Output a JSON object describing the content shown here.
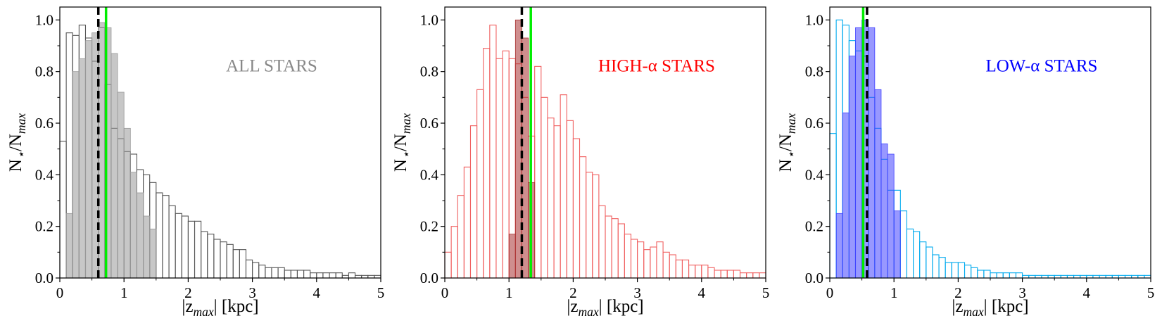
{
  "chart_data": [
    {
      "type": "histogram",
      "annotation": "ALL STARS",
      "annotation_color": "#888888",
      "xlabel": "|z_max| [kpc]",
      "ylabel": "N_⋆/N_max",
      "xlim": [
        0,
        5
      ],
      "ylim": [
        0,
        1.05
      ],
      "xticks": [
        "0",
        "1",
        "2",
        "3",
        "4",
        "5"
      ],
      "yticks": [
        "0.0",
        "0.2",
        "0.4",
        "0.6",
        "0.8",
        "1.0"
      ],
      "bin_width": 0.1,
      "series": [
        {
          "style": "step",
          "color": "#555555",
          "x_start": 0.0,
          "values": [
            0.53,
            0.95,
            0.94,
            0.98,
            0.93,
            0.84,
            0.97,
            0.75,
            0.58,
            0.54,
            0.49,
            0.48,
            0.42,
            0.4,
            0.37,
            0.33,
            0.32,
            0.28,
            0.25,
            0.24,
            0.22,
            0.22,
            0.18,
            0.17,
            0.15,
            0.14,
            0.13,
            0.11,
            0.11,
            0.07,
            0.06,
            0.05,
            0.04,
            0.04,
            0.04,
            0.03,
            0.03,
            0.03,
            0.03,
            0.02,
            0.02,
            0.02,
            0.02,
            0.02,
            0.01,
            0.02,
            0.01,
            0.01,
            0.01,
            0.01
          ]
        },
        {
          "style": "filled",
          "color": "#999999",
          "x_start": 0.1,
          "values": [
            0.25,
            0.8,
            0.85,
            0.92,
            0.95,
            0.99,
            0.97,
            0.87,
            0.72,
            0.58,
            0.41,
            0.33,
            0.24,
            0.19
          ]
        }
      ],
      "vlines": [
        {
          "x": 0.6,
          "style": "dashed",
          "color": "#000000"
        },
        {
          "x": 0.72,
          "style": "solid",
          "color": "#00ee00"
        }
      ]
    },
    {
      "type": "histogram",
      "annotation": "HIGH-α STARS",
      "annotation_color": "#ff0000",
      "xlabel": "|z_max| [kpc]",
      "ylabel": "N_⋆/N_max",
      "xlim": [
        0,
        5
      ],
      "ylim": [
        0,
        1.05
      ],
      "xticks": [
        "0",
        "1",
        "2",
        "3",
        "4",
        "5"
      ],
      "yticks": [
        "0.0",
        "0.2",
        "0.4",
        "0.6",
        "0.8",
        "1.0"
      ],
      "bin_width": 0.1,
      "series": [
        {
          "style": "step",
          "color": "#f06060",
          "x_start": 0.0,
          "values": [
            0.1,
            0.2,
            0.32,
            0.43,
            0.59,
            0.73,
            0.89,
            0.98,
            0.85,
            0.88,
            0.85,
            0.83,
            0.7,
            0.55,
            0.82,
            0.7,
            0.62,
            0.59,
            0.71,
            0.61,
            0.54,
            0.47,
            0.41,
            0.4,
            0.28,
            0.24,
            0.23,
            0.21,
            0.17,
            0.15,
            0.14,
            0.11,
            0.12,
            0.14,
            0.1,
            0.09,
            0.07,
            0.07,
            0.05,
            0.05,
            0.05,
            0.04,
            0.03,
            0.03,
            0.03,
            0.03,
            0.02,
            0.02,
            0.02,
            0.02
          ]
        },
        {
          "style": "filled",
          "color": "#a83232",
          "x_start": 1.0,
          "values": [
            0.17,
            1.0,
            0.93,
            0.37
          ]
        }
      ],
      "vlines": [
        {
          "x": 1.2,
          "style": "dashed",
          "color": "#000000"
        },
        {
          "x": 1.34,
          "style": "solid",
          "color": "#00ee00"
        }
      ]
    },
    {
      "type": "histogram",
      "annotation": "LOW-α STARS",
      "annotation_color": "#0000ff",
      "xlabel": "|z_max| [kpc]",
      "ylabel": "N_⋆/N_max",
      "xlim": [
        0,
        5
      ],
      "ylim": [
        0,
        1.05
      ],
      "xticks": [
        "0",
        "1",
        "2",
        "3",
        "4",
        "5"
      ],
      "yticks": [
        "0.0",
        "0.2",
        "0.4",
        "0.6",
        "0.8",
        "1.0"
      ],
      "bin_width": 0.1,
      "series": [
        {
          "style": "step",
          "color": "#00aaee",
          "x_start": 0.0,
          "values": [
            0.56,
            1.0,
            0.98,
            0.92,
            0.88,
            0.86,
            0.7,
            0.58,
            0.46,
            0.34,
            0.34,
            0.26,
            0.19,
            0.18,
            0.14,
            0.12,
            0.09,
            0.08,
            0.06,
            0.06,
            0.06,
            0.05,
            0.04,
            0.03,
            0.03,
            0.02,
            0.02,
            0.02,
            0.02,
            0.02,
            0.01,
            0.01,
            0.01,
            0.01,
            0.01,
            0.01,
            0.01,
            0.01,
            0.01,
            0.01,
            0.01,
            0.01,
            0.01,
            0.01,
            0.01,
            0.01,
            0.01,
            0.01,
            0.01,
            0.01
          ]
        },
        {
          "style": "filled",
          "color": "#4444ff",
          "x_start": 0.1,
          "values": [
            0.25,
            0.64,
            0.86,
            0.97,
            1.0,
            0.97,
            0.73,
            0.52,
            0.48,
            0.26
          ]
        }
      ],
      "vlines": [
        {
          "x": 0.52,
          "style": "solid",
          "color": "#00ee00"
        },
        {
          "x": 0.58,
          "style": "dashed",
          "color": "#000000"
        }
      ]
    }
  ]
}
